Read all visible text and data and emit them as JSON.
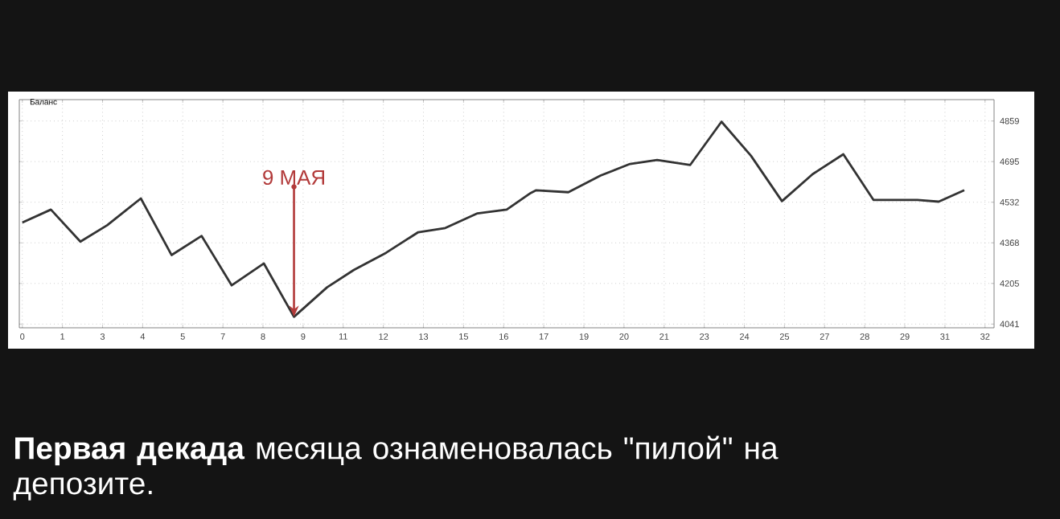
{
  "chart_data": {
    "type": "line",
    "title": "Баланс",
    "x": [
      0,
      0.95,
      1.93,
      2.82,
      3.94,
      4.96,
      5.96,
      6.96,
      8.03,
      9.03,
      10.13,
      11.02,
      12.09,
      13.16,
      14.06,
      15.13,
      16.1,
      16.9,
      17.08,
      18.15,
      19.22,
      20.2,
      21.1,
      22.2,
      23.24,
      24.22,
      25.25,
      26.27,
      27.29,
      28.29,
      29.75,
      30.46,
      31.31
    ],
    "values": [
      4450,
      4502,
      4373,
      4439,
      4547,
      4319,
      4396,
      4197,
      4285,
      4070,
      4189,
      4259,
      4328,
      4411,
      4428,
      4487,
      4502,
      4569,
      4580,
      4572,
      4639,
      4686,
      4702,
      4682,
      4856,
      4719,
      4536,
      4645,
      4725,
      4541,
      4541,
      4534,
      4580
    ],
    "color": "#333333",
    "line_style": "solid",
    "marker": "none",
    "grid": true,
    "xlim": [
      -0.1,
      32.3
    ],
    "ylim": [
      4026,
      4945
    ],
    "xticks": [
      0,
      {
        "value": 1.333,
        "label": "1"
      },
      {
        "value": 2.667,
        "label": "3"
      },
      4,
      {
        "value": 5.333,
        "label": "5"
      },
      {
        "value": 6.667,
        "label": "7"
      },
      8,
      {
        "value": 9.333,
        "label": "9"
      },
      {
        "value": 10.667,
        "label": "11"
      },
      12,
      {
        "value": 13.333,
        "label": "13"
      },
      {
        "value": 14.667,
        "label": "15"
      },
      16,
      {
        "value": 17.333,
        "label": "17"
      },
      {
        "value": 18.667,
        "label": "19"
      },
      20,
      {
        "value": 21.333,
        "label": "21"
      },
      {
        "value": 22.667,
        "label": "23"
      },
      24,
      {
        "value": 25.333,
        "label": "25"
      },
      {
        "value": 26.667,
        "label": "27"
      },
      28,
      {
        "value": 29.333,
        "label": "29"
      },
      {
        "value": 30.667,
        "label": "31"
      },
      32
    ],
    "yticks": [
      4041,
      {
        "value": 4204.6,
        "label": "4205"
      },
      {
        "value": 4368.2,
        "label": "4368"
      },
      {
        "value": 4531.8,
        "label": "4532"
      },
      {
        "value": 4695.4,
        "label": "4695"
      },
      4859
    ],
    "annotations": [
      {
        "text": "9 МАЯ",
        "x": 9.03,
        "y": 4070
      },
      "**Первая декада** месяца ознаменовалась \"пилой\" на депозите."
    ]
  }
}
